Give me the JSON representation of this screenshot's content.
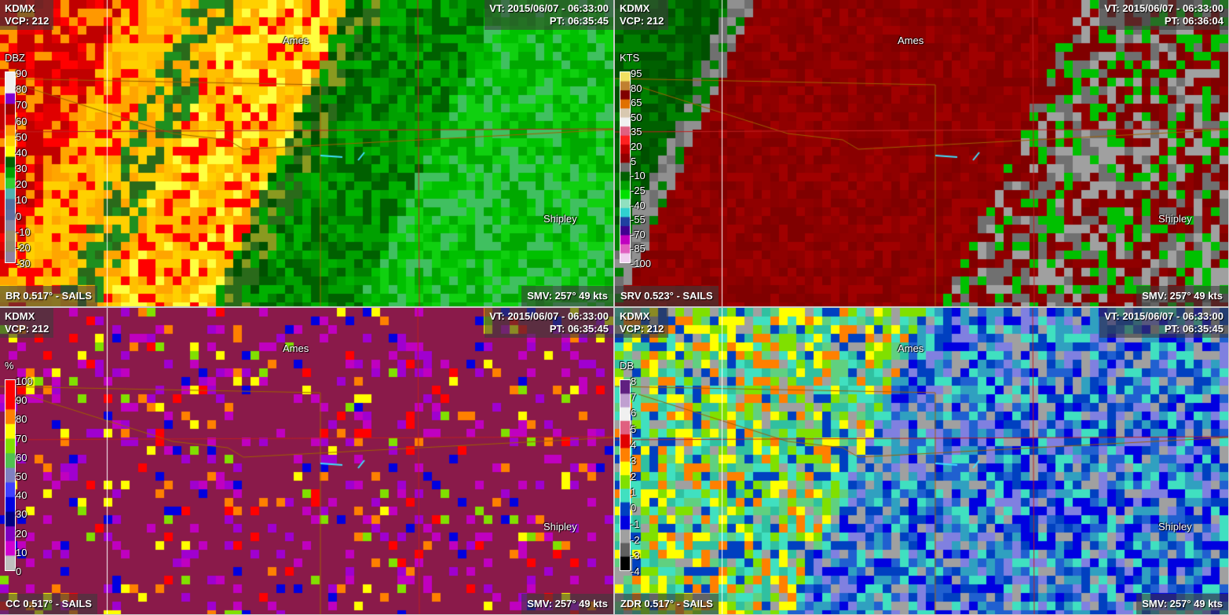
{
  "panels": [
    {
      "id": "br",
      "station": "KDMX",
      "vcp": "VCP: 212",
      "vt": "VT: 2015/06/07 - 06:33:00",
      "pt": "PT: 06:35:45",
      "product": "BR 0.517° - SAILS",
      "smv": "SMV: 257° 49 kts",
      "unit": "DBZ",
      "legend": [
        "90",
        "80",
        "70",
        "60",
        "50",
        "40",
        "30",
        "20",
        "10",
        "0",
        "-10",
        "-20",
        "-30"
      ]
    },
    {
      "id": "srv",
      "station": "KDMX",
      "vcp": "VCP: 212",
      "vt": "VT: 2015/06/07 - 06:33:00",
      "pt": "PT: 06:36:04",
      "product": "SRV 0.523° - SAILS",
      "smv": "SMV: 257° 49 kts",
      "unit": "KTS",
      "legend": [
        "95",
        "80",
        "65",
        "50",
        "35",
        "20",
        "5",
        "-10",
        "-25",
        "-40",
        "-55",
        "-70",
        "-85",
        "-100"
      ]
    },
    {
      "id": "cc",
      "station": "KDMX",
      "vcp": "VCP: 212",
      "vt": "VT: 2015/06/07 - 06:33:00",
      "pt": "PT: 06:35:45",
      "product": "CC 0.517° - SAILS",
      "smv": "SMV: 257° 49 kts",
      "unit": "%",
      "legend": [
        "100",
        "90",
        "80",
        "70",
        "60",
        "50",
        "40",
        "30",
        "20",
        "10",
        "0"
      ]
    },
    {
      "id": "zdr",
      "station": "KDMX",
      "vcp": "VCP: 212",
      "vt": "VT: 2015/06/07 - 06:33:00",
      "pt": "PT: 06:35:45",
      "product": "ZDR 0.517° - SAILS",
      "smv": "SMV: 257° 49 kts",
      "unit": "DB",
      "legend": [
        "8",
        "7",
        "6",
        "5",
        "4",
        "3",
        "2",
        "1",
        "0",
        "-1",
        "-2",
        "-3",
        "-4"
      ]
    }
  ],
  "cities": [
    "Ames",
    "Shipley"
  ]
}
